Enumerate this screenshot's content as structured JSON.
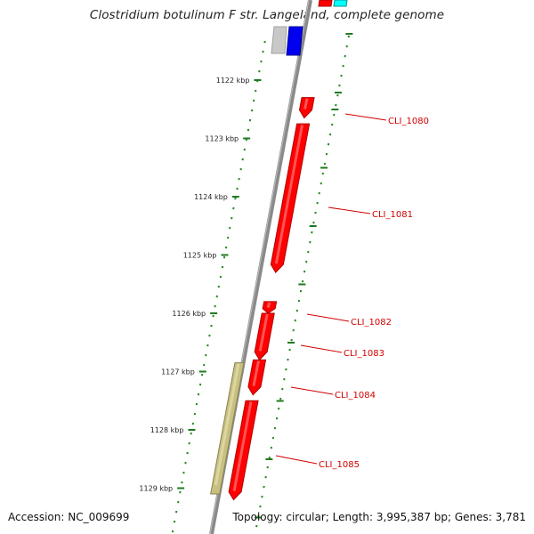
{
  "header": {
    "title": "Clostridium botulinum F str. Langeland, complete genome"
  },
  "footer": {
    "accession": "Accession: NC_009699",
    "summary": "Topology: circular; Length: 3,995,387 bp; Genes: 3,781"
  },
  "colors": {
    "backbone": "#8a8a8a",
    "ruler": "#2a8a2a",
    "gene_forward": "#ff0000",
    "gene_other": "#c8c080",
    "label": "#d00000",
    "partial_grey": "#c8c8c8",
    "partial_blue": "#0000ee",
    "partial_cyan": "#00ffff"
  },
  "ruler": {
    "unit": "kbp",
    "ticks": [
      {
        "label": "1122 kbp",
        "pos_kbp": 1122
      },
      {
        "label": "1123 kbp",
        "pos_kbp": 1123
      },
      {
        "label": "1124 kbp",
        "pos_kbp": 1124
      },
      {
        "label": "1125 kbp",
        "pos_kbp": 1125
      },
      {
        "label": "1126 kbp",
        "pos_kbp": 1126
      },
      {
        "label": "1127 kbp",
        "pos_kbp": 1127
      },
      {
        "label": "1128 kbp",
        "pos_kbp": 1128
      },
      {
        "label": "1129 kbp",
        "pos_kbp": 1129
      }
    ]
  },
  "genes": [
    {
      "label": "CLI_1080",
      "start_kbp": 1122.3,
      "end_kbp": 1122.65,
      "color_key": "gene_forward"
    },
    {
      "label": "CLI_1081",
      "start_kbp": 1122.75,
      "end_kbp": 1125.3,
      "color_key": "gene_forward"
    },
    {
      "label": "CLI_1082",
      "start_kbp": 1125.8,
      "end_kbp": 1126.0,
      "color_key": "gene_forward"
    },
    {
      "label": "CLI_1083",
      "start_kbp": 1126.0,
      "end_kbp": 1126.8,
      "color_key": "gene_forward"
    },
    {
      "label": "CLI_1084",
      "start_kbp": 1126.8,
      "end_kbp": 1127.4,
      "color_key": "gene_forward"
    },
    {
      "label": "CLI_1085",
      "start_kbp": 1127.5,
      "end_kbp": 1129.2,
      "color_key": "gene_forward"
    },
    {
      "label": "",
      "start_kbp": 1126.85,
      "end_kbp": 1129.1,
      "color_key": "gene_other"
    }
  ]
}
